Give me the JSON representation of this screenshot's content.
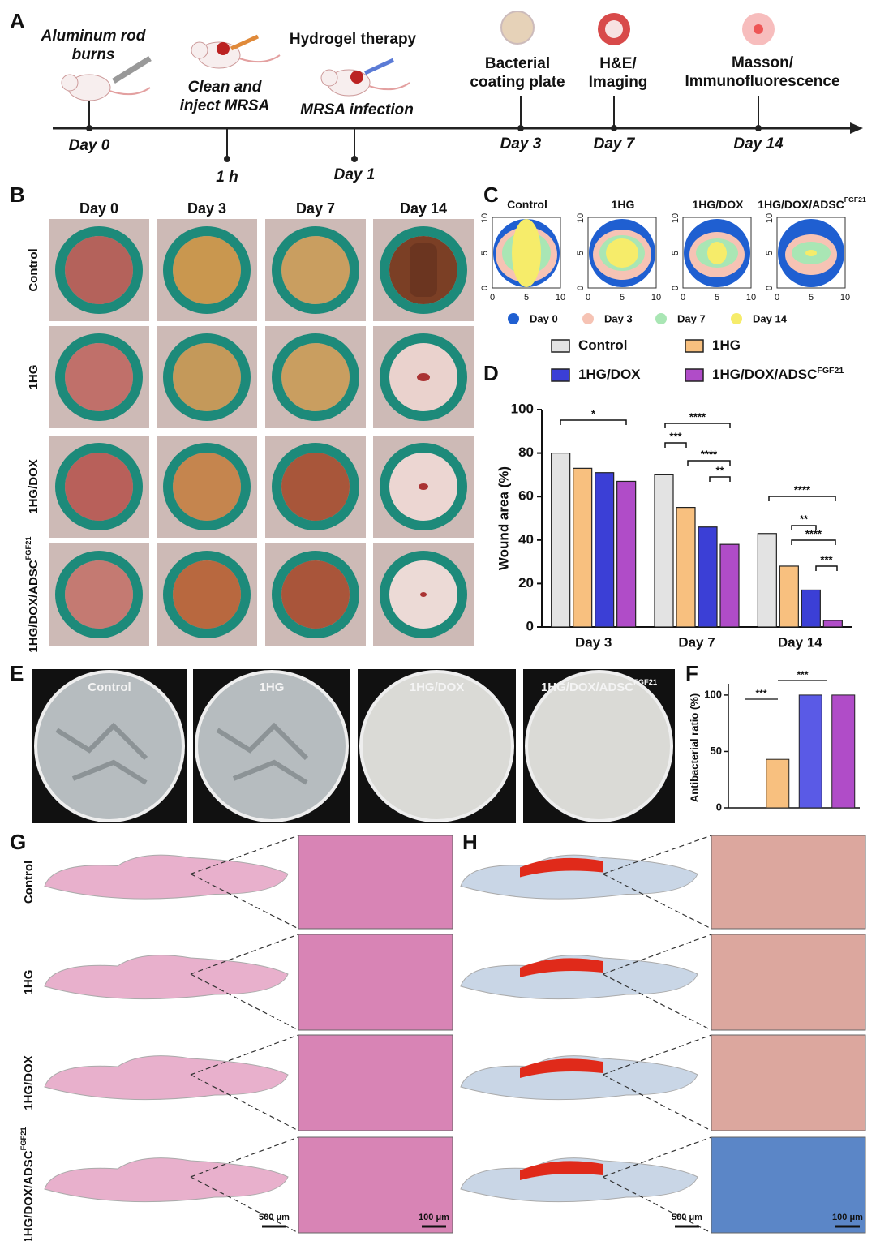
{
  "panel_labels": [
    "A",
    "B",
    "C",
    "D",
    "E",
    "F",
    "G",
    "H"
  ],
  "timeline": {
    "events": [
      {
        "time": "Day 0",
        "labels": [
          "Aluminum rod",
          "burns"
        ]
      },
      {
        "time": "1 h",
        "labels": [
          "Clean and",
          "inject MRSA"
        ]
      },
      {
        "time": "Day 1",
        "labels": [
          "Hydrogel therapy",
          "MRSA infection"
        ]
      },
      {
        "time": "Day 3",
        "labels": [
          "Bacterial",
          "coating plate"
        ]
      },
      {
        "time": "Day 7",
        "labels": [
          "H&E/",
          "Imaging"
        ]
      },
      {
        "time": "Day 14",
        "labels": [
          "Masson/",
          "Immunofluorescence"
        ]
      }
    ]
  },
  "groups": [
    {
      "name": "Control"
    },
    {
      "name": "1HG"
    },
    {
      "name": "1HG/DOX"
    },
    {
      "name": "1HG/DOX/ADSC",
      "sup": "FGF21"
    }
  ],
  "wound_photos": {
    "days": [
      "Day 0",
      "Day 3",
      "Day 7",
      "Day 14"
    ]
  },
  "contour_maps": {
    "ticks": [
      0,
      5,
      10
    ],
    "legend": [
      {
        "name": "Day 0",
        "color": "#1f5fd1"
      },
      {
        "name": "Day 3",
        "color": "#f6c3b4"
      },
      {
        "name": "Day 7",
        "color": "#a9e6b4"
      },
      {
        "name": "Day 14",
        "color": "#f6ec6a"
      }
    ]
  },
  "chart_data": [
    {
      "type": "bar",
      "ylabel": "Wound area (%)",
      "categories": [
        "Day 3",
        "Day 7",
        "Day 14"
      ],
      "series": [
        {
          "name": "Control",
          "color": "#e3e3e3",
          "values": [
            80,
            70,
            43
          ]
        },
        {
          "name": "1HG",
          "color": "#f8c07f",
          "values": [
            73,
            55,
            28
          ]
        },
        {
          "name": "1HG/DOX",
          "color": "#3b3fd6",
          "values": [
            71,
            46,
            17
          ]
        },
        {
          "name": "1HG/DOX/ADSC",
          "sup": "FGF21",
          "color": "#b04cc8",
          "values": [
            67,
            38,
            3
          ]
        }
      ],
      "ylim": [
        0,
        100
      ],
      "yticks": [
        0,
        20,
        40,
        60,
        80,
        100
      ],
      "annotations": [
        "*",
        "***",
        "****",
        "****",
        "**",
        "****",
        "**",
        "****",
        "***"
      ]
    },
    {
      "type": "bar",
      "ylabel": "Antibacterial ratio (%)",
      "categories": [
        null,
        null,
        null,
        null
      ],
      "values": [
        0,
        43,
        100,
        100
      ],
      "colors": [
        "#e3e3e3",
        "#f8c07f",
        "#5a5ae6",
        "#b04cc8"
      ],
      "ylim": [
        0,
        110
      ],
      "yticks": [
        0,
        50,
        100
      ],
      "annotations": [
        "***",
        "***"
      ]
    }
  ],
  "histology": {
    "scale_bars": [
      "500 μm",
      "100 μm"
    ]
  }
}
